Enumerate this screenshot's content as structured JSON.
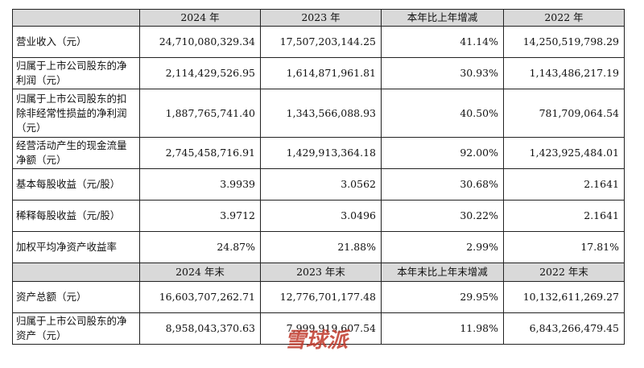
{
  "header1": [
    "",
    "2024 年",
    "2023 年",
    "本年比上年增减",
    "2022 年"
  ],
  "rows1": [
    {
      "label": "营业收入（元）",
      "v2024": "24,710,080,329.34",
      "v2023": "17,507,203,144.25",
      "change": "41.14%",
      "v2022": "14,250,519,798.29"
    },
    {
      "label": "归属于上市公司股东的净利润（元）",
      "v2024": "2,114,429,526.95",
      "v2023": "1,614,871,961.81",
      "change": "30.93%",
      "v2022": "1,143,486,217.19"
    },
    {
      "label": "归属于上市公司股东的扣除非经常性损益的净利润（元）",
      "v2024": "1,887,765,741.40",
      "v2023": "1,343,566,088.93",
      "change": "40.50%",
      "v2022": "781,709,064.54"
    },
    {
      "label": "经营活动产生的现金流量净额（元）",
      "v2024": "2,745,458,716.91",
      "v2023": "1,429,913,364.18",
      "change": "92.00%",
      "v2022": "1,423,925,484.01"
    },
    {
      "label": "基本每股收益（元/股）",
      "v2024": "3.9939",
      "v2023": "3.0562",
      "change": "30.68%",
      "v2022": "2.1641"
    },
    {
      "label": "稀释每股收益（元/股）",
      "v2024": "3.9712",
      "v2023": "3.0496",
      "change": "30.22%",
      "v2022": "2.1641"
    },
    {
      "label": "加权平均净资产收益率",
      "v2024": "24.87%",
      "v2023": "21.88%",
      "change": "2.99%",
      "v2022": "17.81%"
    }
  ],
  "header2": [
    "",
    "2024 年末",
    "2023 年末",
    "本年末比上年末增减",
    "2022 年末"
  ],
  "rows2": [
    {
      "label": "资产总额（元）",
      "v2024": "16,603,707,262.71",
      "v2023": "12,776,701,177.48",
      "change": "29.95%",
      "v2022": "10,132,611,269.27"
    },
    {
      "label": "归属于上市公司股东的净资产（元）",
      "v2024": "8,958,043,370.63",
      "v2023": "7,999,919,607.54",
      "change": "11.98%",
      "v2022": "6,843,266,479.45"
    }
  ],
  "watermark": {
    "text": "雪球派",
    "color": "#c0392b"
  }
}
